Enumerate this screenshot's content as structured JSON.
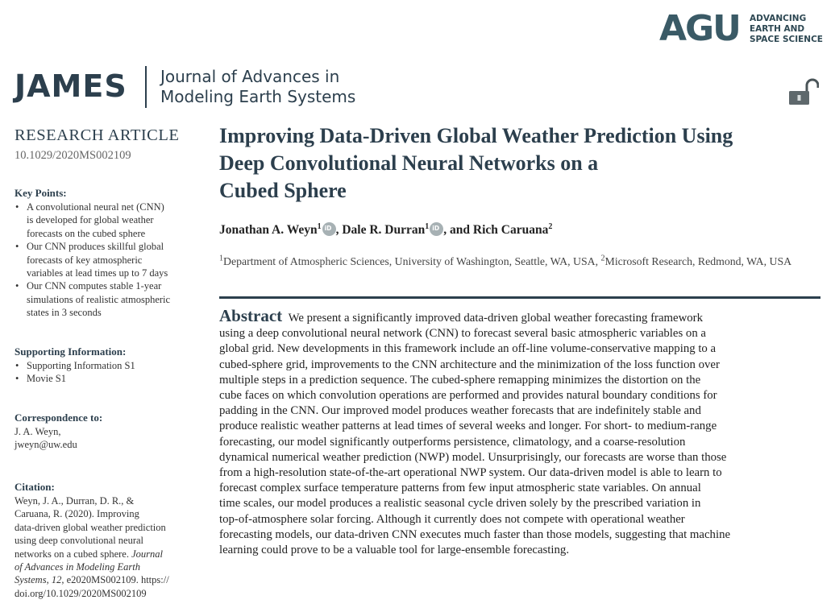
{
  "publisher": {
    "mark": "AGU",
    "tagline": [
      "ADVANCING",
      "EARTH AND",
      "SPACE SCIENCE"
    ],
    "color": "#3a5a66"
  },
  "journal": {
    "abbrev": "JAMES",
    "name_lines": [
      "Journal of Advances in",
      "Modeling Earth Systems"
    ],
    "color": "#2c3f4d"
  },
  "open_access_icon": "unlocked-padlock-icon",
  "article": {
    "type": "RESEARCH ARTICLE",
    "doi": "10.1029/2020MS002109",
    "title_lines": [
      "Improving Data-Driven Global Weather Prediction Using",
      "Deep Convolutional Neural Networks on a",
      "Cubed Sphere"
    ],
    "authors": [
      {
        "name": "Jonathan A. Weyn",
        "aff": "1",
        "orcid": true,
        "sep": ", "
      },
      {
        "name": "Dale R. Durran",
        "aff": "1",
        "orcid": true,
        "sep": ", and "
      },
      {
        "name": "Rich Caruana",
        "aff": "2",
        "orcid": false,
        "sep": ""
      }
    ],
    "affiliations": {
      "num1": "1",
      "text1": "Department of Atmospheric Sciences, University of Washington, Seattle, WA, USA, ",
      "num2": "2",
      "text2": "Microsoft Research, Redmond, WA, USA"
    },
    "abstract_label": "Abstract",
    "abstract_lines": [
      "We present a significantly improved data-driven global weather forecasting framework",
      "using a deep convolutional neural network (CNN) to forecast several basic atmospheric variables on a",
      "global grid. New developments in this framework include an off-line volume-conservative mapping to a",
      "cubed-sphere grid, improvements to the CNN architecture and the minimization of the loss function over",
      "multiple steps in a prediction sequence. The cubed-sphere remapping minimizes the distortion on the",
      "cube faces on which convolution operations are performed and provides natural boundary conditions for",
      "padding in the CNN. Our improved model produces weather forecasts that are indefinitely stable and",
      "produce realistic weather patterns at lead times of several weeks and longer. For short- to medium-range",
      "forecasting, our model significantly outperforms persistence, climatology, and a coarse-resolution",
      "dynamical numerical weather prediction (NWP) model. Unsurprisingly, our forecasts are worse than those",
      "from a high-resolution state-of-the-art operational NWP system. Our data-driven model is able to learn to",
      "forecast complex surface temperature patterns from few input atmospheric state variables. On annual",
      "time scales, our model produces a realistic seasonal cycle driven solely by the prescribed variation in",
      "top-of-atmosphere solar forcing. Although it currently does not compete with operational weather",
      "forecasting models, our data-driven CNN executes much faster than those models, suggesting that machine",
      "learning could prove to be a valuable tool for large-ensemble forecasting."
    ]
  },
  "sidebar": {
    "key_points": {
      "heading": "Key Points:",
      "items": [
        [
          "A convolutional neural net (CNN)",
          "is developed for global weather",
          "forecasts on the cubed sphere"
        ],
        [
          "Our CNN produces skillful global",
          "forecasts of key atmospheric",
          "variables at lead times up to 7 days"
        ],
        [
          "Our CNN computes stable 1-year",
          "simulations of realistic atmospheric",
          "states in 3 seconds"
        ]
      ]
    },
    "supporting": {
      "heading": "Supporting Information:",
      "items": [
        "Supporting Information S1",
        "Movie S1"
      ]
    },
    "correspondence": {
      "heading": "Correspondence to:",
      "name": "J. A. Weyn,",
      "email": "jweyn@uw.edu"
    },
    "citation": {
      "heading": "Citation:",
      "lines": [
        "Weyn, J. A., Durran, D. R., &",
        "Caruana, R. (2020). Improving",
        "data-driven global weather prediction",
        "using deep convolutional neural",
        "networks on a cubed sphere. "
      ],
      "journal_lines": [
        "Journal",
        "of Advances in Modeling Earth",
        "Systems, 12"
      ],
      "tail_lines": [
        ", e2020MS002109. https://",
        "doi.org/10.1029/2020MS002109"
      ]
    }
  }
}
